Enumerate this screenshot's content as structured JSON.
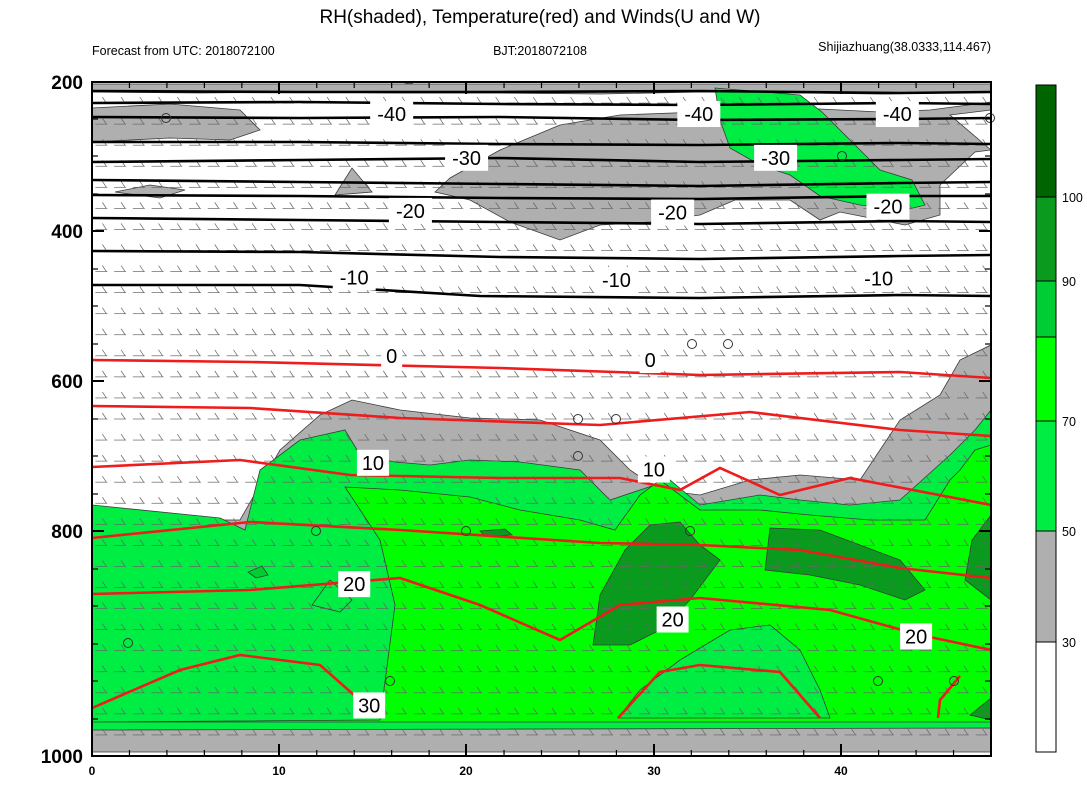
{
  "chart_data": {
    "type": "contour",
    "title": "RH(shaded), Temperature(red) and Winds(U and W)",
    "subtitle_left": "Forecast from UTC: 2018072100",
    "subtitle_center": "BJT:2018072108",
    "subtitle_right": "Shijiazhuang(38.0333,114.467)",
    "xlim": [
      0,
      48
    ],
    "ylim": [
      200,
      1000
    ],
    "y_inverted": true,
    "x_ticks": [
      "0",
      "10",
      "20",
      "30",
      "40"
    ],
    "y_ticks": [
      "200",
      "400",
      "600",
      "800",
      "1000"
    ],
    "colorbar": {
      "levels": [
        "30",
        "50",
        "70",
        "90",
        "100"
      ],
      "colors": [
        "#ffffff",
        "#afafaf",
        "#00ee44",
        "#00ff00",
        "#00cc33",
        "#0a9a1e",
        "#006400"
      ]
    },
    "temperature_labels": [
      {
        "text": "-40",
        "x": 16.0,
        "p": 238
      },
      {
        "text": "-40",
        "x": 32.4,
        "p": 238
      },
      {
        "text": "-40",
        "x": 43.0,
        "p": 238
      },
      {
        "text": "-30",
        "x": 20.0,
        "p": 290
      },
      {
        "text": "-30",
        "x": 36.5,
        "p": 290
      },
      {
        "text": "-20",
        "x": 17.0,
        "p": 353
      },
      {
        "text": "-20",
        "x": 31.0,
        "p": 355
      },
      {
        "text": "-20",
        "x": 42.5,
        "p": 348
      },
      {
        "text": "-10",
        "x": 14.0,
        "p": 432
      },
      {
        "text": "-10",
        "x": 28.0,
        "p": 435
      },
      {
        "text": "-10",
        "x": 42.0,
        "p": 433
      },
      {
        "text": "0",
        "x": 16.0,
        "p": 525
      },
      {
        "text": "0",
        "x": 29.8,
        "p": 530
      },
      {
        "text": "10",
        "x": 15.0,
        "p": 652
      },
      {
        "text": "10",
        "x": 30.0,
        "p": 660
      },
      {
        "text": "20",
        "x": 14.0,
        "p": 796
      },
      {
        "text": "20",
        "x": 31.0,
        "p": 838
      },
      {
        "text": "20",
        "x": 44.0,
        "p": 858
      },
      {
        "text": "30",
        "x": 14.8,
        "p": 940
      }
    ]
  }
}
